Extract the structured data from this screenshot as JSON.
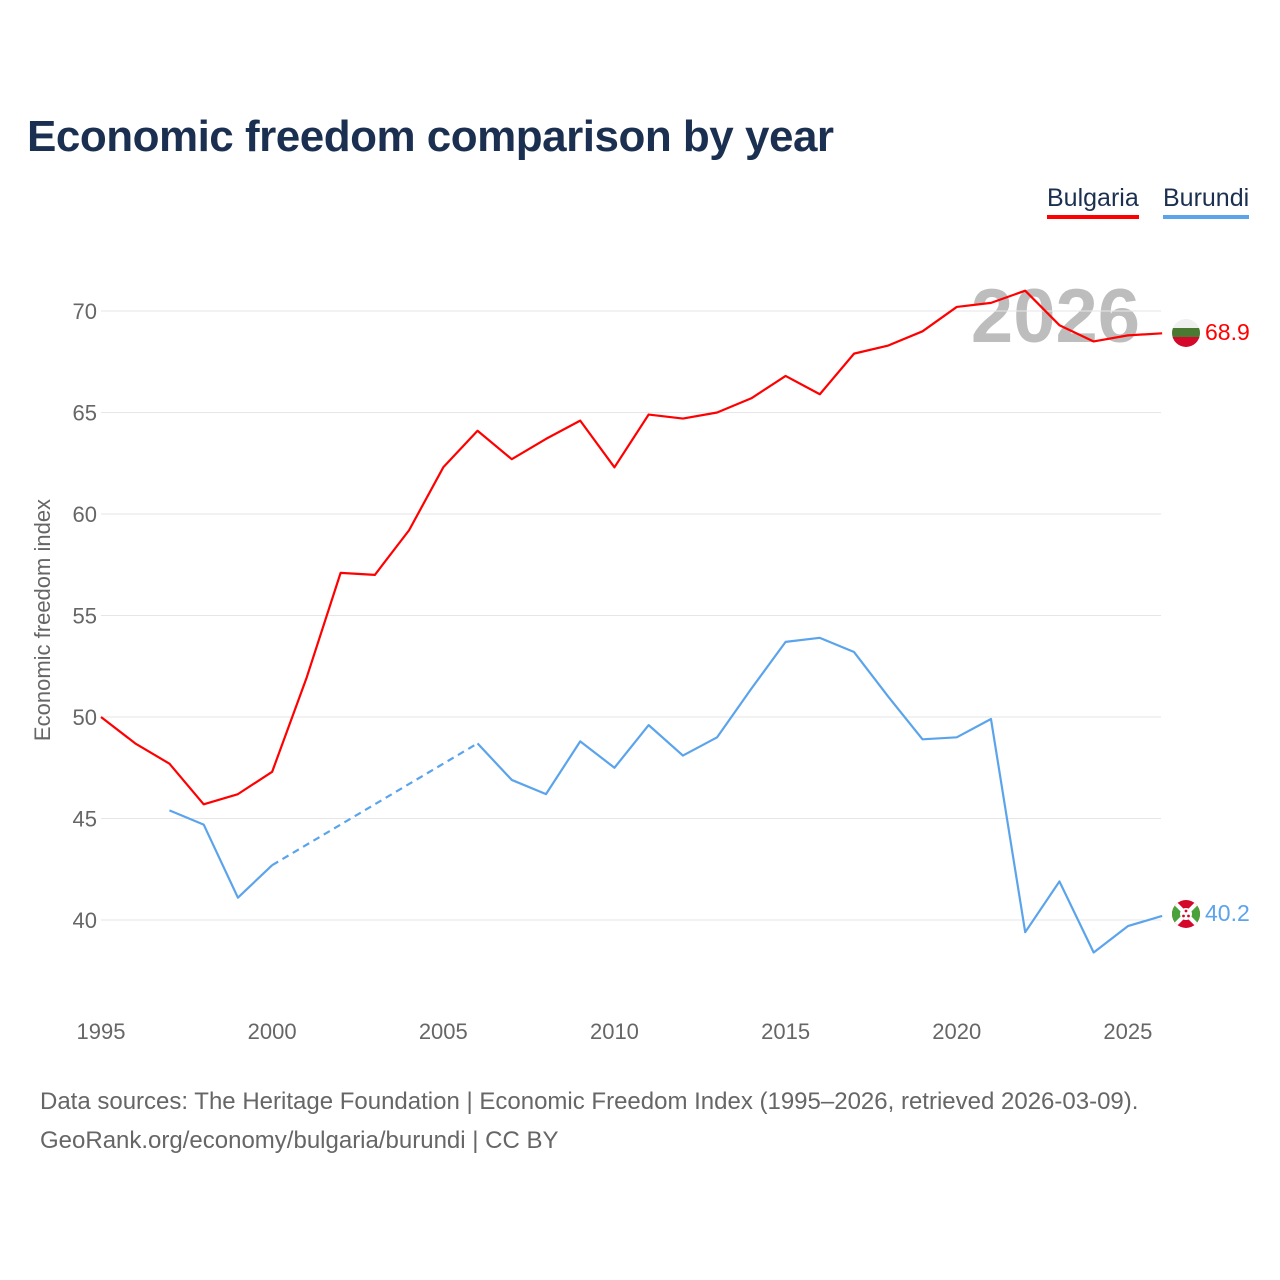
{
  "title": "Economic freedom comparison by year",
  "footer": {
    "line1": "Data sources: The Heritage Foundation | Economic Freedom Index (1995–2026, retrieved 2026-03-09).",
    "line2": "GeoRank.org/economy/bulgaria/burundi | CC BY"
  },
  "chart_data": {
    "type": "line",
    "title": "Economic freedom comparison by year",
    "ylabel": "Economic freedom index",
    "xlabel": "",
    "year_watermark": "2026",
    "xlim": [
      1995,
      2026
    ],
    "ylim": [
      36,
      73
    ],
    "xticks": [
      "1995",
      "2000",
      "2005",
      "2010",
      "2015",
      "2020",
      "2025"
    ],
    "yticks": [
      "40",
      "45",
      "50",
      "55",
      "60",
      "65",
      "70"
    ],
    "grid": true,
    "legend_position": "top-right",
    "x": [
      1995,
      1996,
      1997,
      1998,
      1999,
      2000,
      2001,
      2002,
      2003,
      2004,
      2005,
      2006,
      2007,
      2008,
      2009,
      2010,
      2011,
      2012,
      2013,
      2014,
      2015,
      2016,
      2017,
      2018,
      2019,
      2020,
      2021,
      2022,
      2023,
      2024,
      2025,
      2026
    ],
    "series": [
      {
        "name": "Bulgaria",
        "color": "#ff0000",
        "end_label": "68.9",
        "flag": "bulgaria-flag",
        "values": [
          50.0,
          48.7,
          47.7,
          45.7,
          46.2,
          47.3,
          51.9,
          57.1,
          57.0,
          59.2,
          62.3,
          64.1,
          62.7,
          63.7,
          64.6,
          62.3,
          64.9,
          64.7,
          65.0,
          65.7,
          66.8,
          65.9,
          67.9,
          68.3,
          69.0,
          70.2,
          70.4,
          71.0,
          69.3,
          68.5,
          68.8,
          68.9
        ]
      },
      {
        "name": "Burundi",
        "color": "#5ba4ec",
        "end_label": "40.2",
        "flag": "burundi-flag",
        "values": [
          null,
          null,
          45.4,
          44.7,
          41.1,
          42.7,
          null,
          null,
          null,
          null,
          null,
          48.7,
          46.9,
          46.2,
          48.8,
          47.5,
          49.6,
          48.1,
          49.0,
          51.4,
          53.7,
          53.9,
          53.2,
          51.0,
          48.9,
          49.0,
          49.9,
          39.4,
          41.9,
          38.4,
          39.7,
          40.2
        ]
      }
    ]
  }
}
